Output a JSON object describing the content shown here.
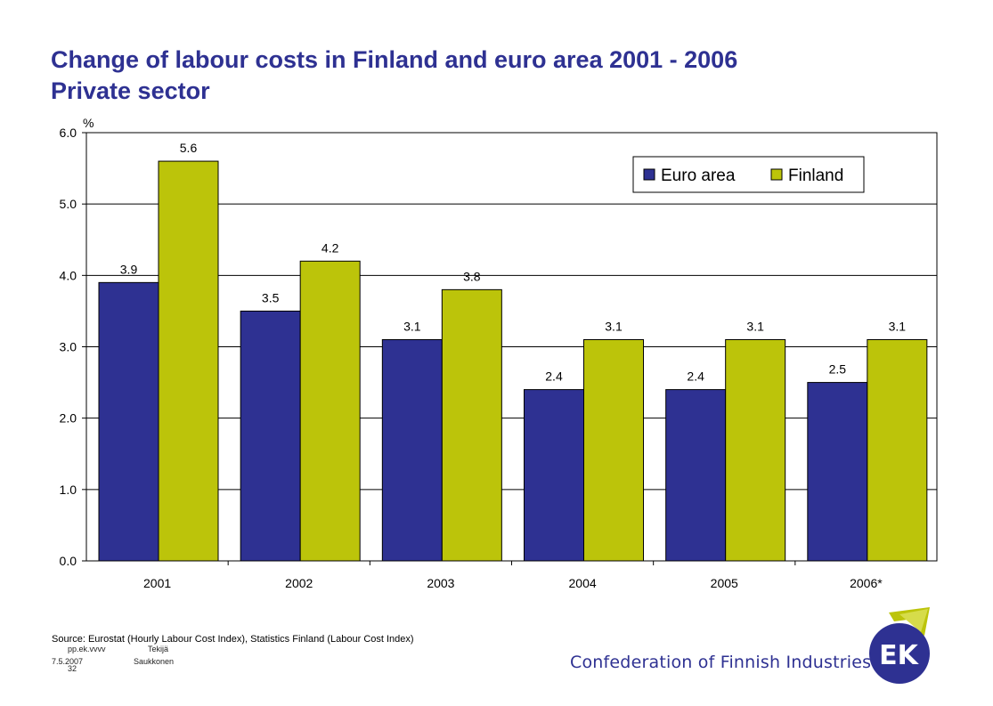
{
  "title": {
    "line1": "Change of labour costs in Finland and euro area 2001 - 2006",
    "line2": "Private sector"
  },
  "chart_data": {
    "type": "bar",
    "categories": [
      "2001",
      "2002",
      "2003",
      "2004",
      "2005",
      "2006*"
    ],
    "series": [
      {
        "name": "Euro area",
        "values": [
          3.9,
          3.5,
          3.1,
          2.4,
          2.4,
          2.5
        ],
        "color": "#2e3192"
      },
      {
        "name": "Finland",
        "values": [
          5.6,
          4.2,
          3.8,
          3.1,
          3.1,
          3.1
        ],
        "color": "#bcc40a"
      }
    ],
    "data_labels": {
      "Euro area": [
        "3.9",
        "3.5",
        "3.1",
        "2.4",
        "2.4",
        "2.5"
      ],
      "Finland": [
        "5.6",
        "4.2",
        "3.8",
        "3.1",
        "3.1",
        "3.1"
      ]
    },
    "ylabel": "%",
    "ylim": [
      0,
      6
    ],
    "yticks": [
      "0.0",
      "1.0",
      "2.0",
      "3.0",
      "4.0",
      "5.0",
      "6.0"
    ],
    "grid": true,
    "legend_position": "top-right"
  },
  "source": "Source: Eurostat (Hourly Labour Cost Index), Statistics Finland (Labour Cost Index)",
  "footer": {
    "code": "pp.ek.vvvv",
    "author_first": "Tekijä",
    "date": "7.5.2007",
    "author_last": "Saukkonen",
    "page": "32"
  },
  "org_name": "Confederation of Finnish Industries",
  "logo_text": "EK",
  "colors": {
    "title": "#2e3192",
    "euro": "#2e3192",
    "finland": "#bcc40a"
  }
}
